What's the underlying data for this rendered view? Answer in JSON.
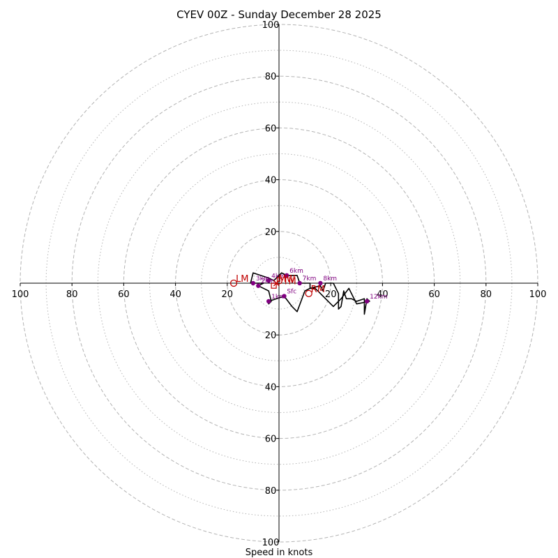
{
  "chart_data": {
    "type": "scatter",
    "title": "CYEV 00Z - Sunday December 28 2025",
    "xlabel": "Speed in knots",
    "ylabel": "",
    "xlim": [
      -100,
      100
    ],
    "ylim": [
      -100,
      100
    ],
    "ring_major": [
      20,
      40,
      60,
      80,
      100
    ],
    "ring_minor": [
      10,
      30,
      50,
      70,
      90
    ],
    "x_ticks": [
      -100,
      -80,
      -60,
      -40,
      -20,
      20,
      40,
      60,
      80,
      100
    ],
    "y_ticks": [
      -100,
      -80,
      -60,
      -40,
      -20,
      20,
      40,
      60,
      80,
      100
    ],
    "hodograph_trace": [
      [
        2,
        -5
      ],
      [
        -4,
        -7
      ],
      [
        -4,
        -8
      ],
      [
        -3,
        -7
      ],
      [
        -4,
        -3
      ],
      [
        -8,
        -1
      ],
      [
        -6,
        0
      ],
      [
        -11,
        0
      ],
      [
        -10,
        4
      ],
      [
        -4,
        2
      ],
      [
        -2,
        1
      ],
      [
        0,
        3
      ],
      [
        1,
        4
      ],
      [
        3,
        3
      ],
      [
        7,
        3
      ],
      [
        8,
        0
      ],
      [
        12,
        0
      ],
      [
        12,
        -2
      ],
      [
        16,
        -1
      ],
      [
        17,
        -3
      ],
      [
        18,
        0
      ],
      [
        21,
        0
      ],
      [
        23,
        -4
      ],
      [
        23,
        -10
      ],
      [
        24,
        -9
      ],
      [
        25,
        -3
      ],
      [
        26,
        -6
      ],
      [
        28,
        -6
      ],
      [
        30,
        -7
      ],
      [
        33,
        -6
      ],
      [
        33,
        -12
      ],
      [
        34,
        -6
      ],
      [
        35,
        -7
      ],
      [
        30,
        -8
      ],
      [
        27,
        -2
      ],
      [
        24,
        -6
      ],
      [
        22,
        -8
      ],
      [
        21,
        -9
      ],
      [
        18,
        -6
      ],
      [
        16,
        -4
      ],
      [
        14,
        -2
      ],
      [
        12,
        -2
      ],
      [
        10,
        -3
      ],
      [
        7,
        -11
      ],
      [
        5,
        -9
      ],
      [
        2,
        -5
      ]
    ],
    "height_markers": [
      {
        "label": "Sfc",
        "u": 2,
        "v": -5
      },
      {
        "label": "1km",
        "u": -4,
        "v": -7
      },
      {
        "label": "2km",
        "u": -8,
        "v": -1
      },
      {
        "label": "3km",
        "u": -10,
        "v": 0
      },
      {
        "label": "4km",
        "u": -4,
        "v": 1
      },
      {
        "label": "6km",
        "u": 3,
        "v": 3
      },
      {
        "label": "7km",
        "u": 8,
        "v": 0
      },
      {
        "label": "8km",
        "u": 16,
        "v": 0
      },
      {
        "label": "12km",
        "u": 34,
        "v": -7
      }
    ],
    "storm_motions": [
      {
        "label": "LM",
        "u": -17.5,
        "v": 0,
        "marker": "circle"
      },
      {
        "label": "RM",
        "u": 11.5,
        "v": -4,
        "marker": "circle"
      },
      {
        "label": "MW",
        "u": -1,
        "v": 0,
        "marker": "cross"
      },
      {
        "label": "DTM",
        "u": -2,
        "v": -1,
        "marker": "square"
      }
    ],
    "colors": {
      "trace": "#000000",
      "height_marker": "#800080",
      "storm_motion": "#c00000",
      "ring": "#b3b3b3"
    }
  }
}
